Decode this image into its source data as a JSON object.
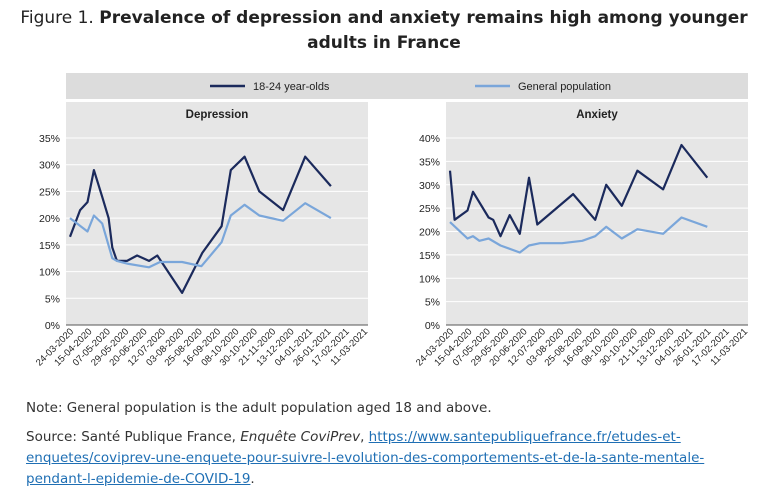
{
  "title": {
    "prefix": "Figure 1. ",
    "text": "Prevalence of depression and anxiety remains high among younger adults in France"
  },
  "colors": {
    "young": "#1b2a5c",
    "general": "#7aa6da",
    "legend_bg": "#dcdcdc",
    "panel_bg": "#e6e6e6",
    "grid": "#ffffff"
  },
  "legend": {
    "young": "18-24 year-olds",
    "general": "General population"
  },
  "chart_data": [
    {
      "type": "line",
      "title": "Depression",
      "x": [
        "24-03-2020",
        "15-04-2020",
        "07-05-2020",
        "29-05-2020",
        "20-06-2020",
        "12-07-2020",
        "03-08-2020",
        "25-08-2020",
        "16-09-2020",
        "08-10-2020",
        "30-10-2020",
        "21-11-2020",
        "13-12-2020",
        "04-01-2021",
        "26-01-2021",
        "17-02-2021",
        "11-03-2021"
      ],
      "ylim": [
        0,
        35
      ],
      "yticks": [
        "0%",
        "5%",
        "10%",
        "15%",
        "20%",
        "25%",
        "30%",
        "35%"
      ],
      "ytick_values": [
        0,
        5,
        10,
        15,
        20,
        25,
        30,
        35
      ],
      "series": [
        {
          "name": "18-24 year-olds",
          "points": [
            [
              0,
              16.5
            ],
            [
              0.55,
              21.5
            ],
            [
              0.95,
              23
            ],
            [
              1.3,
              29
            ],
            [
              1.75,
              24
            ],
            [
              2.1,
              20
            ],
            [
              2.3,
              14.5
            ],
            [
              2.55,
              12
            ],
            [
              3.1,
              12
            ],
            [
              3.65,
              13
            ],
            [
              4.3,
              12
            ],
            [
              4.75,
              13
            ],
            [
              6.1,
              6
            ],
            [
              7.2,
              13.5
            ],
            [
              8.25,
              18.5
            ],
            [
              8.75,
              29
            ],
            [
              9.5,
              31.5
            ],
            [
              10.3,
              25
            ],
            [
              11.6,
              21.5
            ],
            [
              12.8,
              31.5
            ],
            [
              14.2,
              26
            ]
          ]
        },
        {
          "name": "General population",
          "points": [
            [
              0,
              20
            ],
            [
              0.95,
              17.5
            ],
            [
              1.3,
              20.5
            ],
            [
              1.75,
              19
            ],
            [
              2.3,
              12.5
            ],
            [
              2.55,
              12
            ],
            [
              3.1,
              11.5
            ],
            [
              4.3,
              10.8
            ],
            [
              4.9,
              11.8
            ],
            [
              6.1,
              11.8
            ],
            [
              7.15,
              11
            ],
            [
              8.25,
              15.5
            ],
            [
              8.75,
              20.5
            ],
            [
              9.5,
              22.5
            ],
            [
              10.3,
              20.5
            ],
            [
              11.6,
              19.5
            ],
            [
              12.8,
              22.8
            ],
            [
              14.2,
              20
            ]
          ]
        }
      ]
    },
    {
      "type": "line",
      "title": "Anxiety",
      "x": [
        "24-03-2020",
        "15-04-2020",
        "07-05-2020",
        "29-05-2020",
        "20-06-2020",
        "12-07-2020",
        "03-08-2020",
        "25-08-2020",
        "16-09-2020",
        "08-10-2020",
        "30-10-2020",
        "21-11-2020",
        "13-12-2020",
        "04-01-2021",
        "26-01-2021",
        "17-02-2021",
        "11-03-2021"
      ],
      "ylim": [
        0,
        40
      ],
      "yticks": [
        "0%",
        "5%",
        "10%",
        "15%",
        "20%",
        "25%",
        "30%",
        "35%",
        "40%"
      ],
      "ytick_values": [
        0,
        5,
        10,
        15,
        20,
        25,
        30,
        35,
        40
      ],
      "series": [
        {
          "name": "18-24 year-olds",
          "points": [
            [
              0,
              33
            ],
            [
              0.25,
              22.5
            ],
            [
              0.95,
              24.5
            ],
            [
              1.25,
              28.5
            ],
            [
              2.1,
              23
            ],
            [
              2.35,
              22.5
            ],
            [
              2.75,
              19
            ],
            [
              3.25,
              23.5
            ],
            [
              3.8,
              19.5
            ],
            [
              4.3,
              31.5
            ],
            [
              4.75,
              21.5
            ],
            [
              6.7,
              28
            ],
            [
              7.9,
              22.5
            ],
            [
              8.5,
              30
            ],
            [
              9.35,
              25.5
            ],
            [
              10.2,
              33
            ],
            [
              11.6,
              29
            ],
            [
              12.6,
              38.5
            ],
            [
              14.0,
              31.5
            ]
          ]
        },
        {
          "name": "General population",
          "points": [
            [
              0,
              22
            ],
            [
              0.95,
              18.5
            ],
            [
              1.25,
              19
            ],
            [
              1.6,
              18
            ],
            [
              2.1,
              18.5
            ],
            [
              2.75,
              17
            ],
            [
              3.8,
              15.5
            ],
            [
              4.3,
              17
            ],
            [
              4.9,
              17.5
            ],
            [
              6.1,
              17.5
            ],
            [
              7.2,
              18
            ],
            [
              7.9,
              19
            ],
            [
              8.5,
              21
            ],
            [
              9.35,
              18.5
            ],
            [
              10.2,
              20.5
            ],
            [
              11.6,
              19.5
            ],
            [
              12.6,
              23
            ],
            [
              14.0,
              21
            ]
          ]
        }
      ]
    }
  ],
  "note": "Note: General population is the adult population aged 18 and above.",
  "source": {
    "prefix": "Source: Santé Publique France, ",
    "survey": "Enquête CoviPrev",
    "sep": ", ",
    "link_line1": "https://www.santepubliquefrance.fr/etudes-et-",
    "link_line2": "enquetes/coviprev-une-enquete-pour-suivre-l-evolution-des-comportements-et-de-la-sante-mentale-",
    "link_line3": "pendant-l-epidemie-de-COVID-19",
    "suffix": "."
  }
}
